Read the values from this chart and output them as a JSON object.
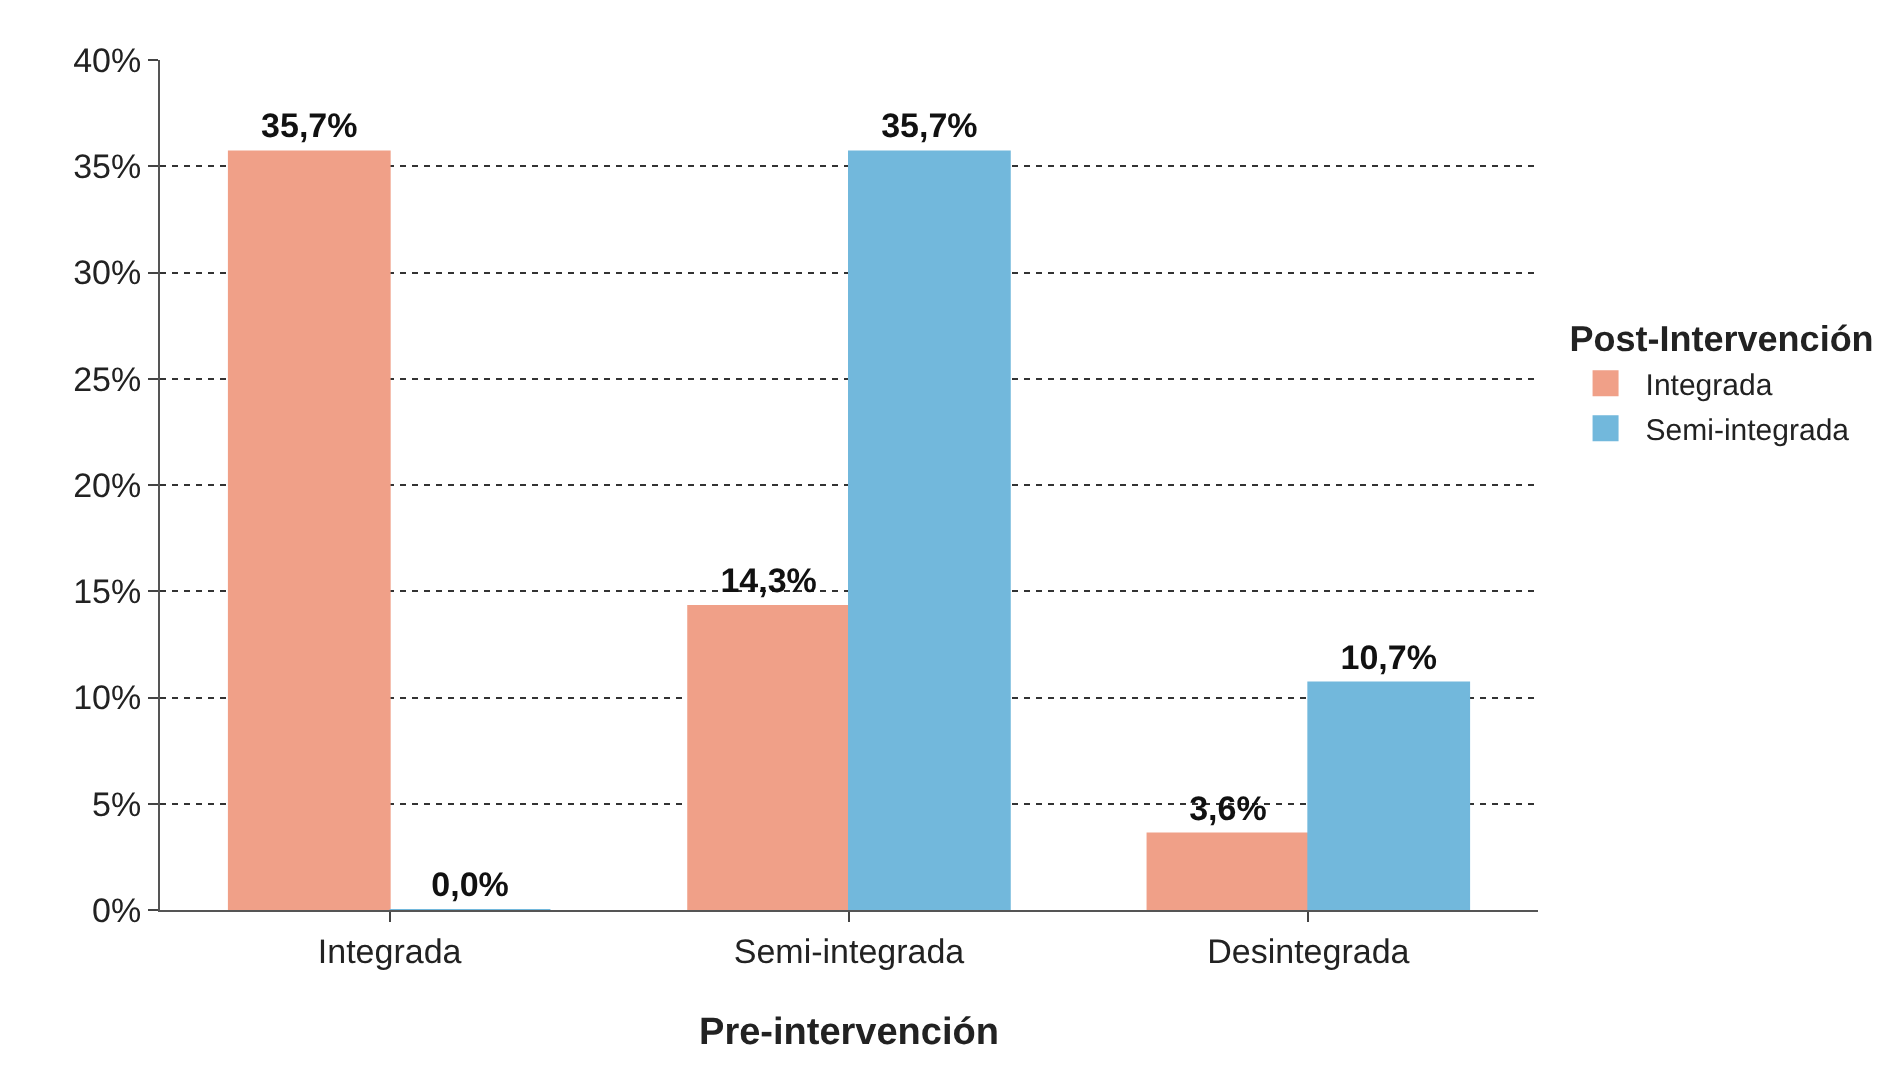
{
  "chart_data": {
    "type": "bar",
    "xlabel": "Pre-intervención",
    "legend_title": "Post-Intervención",
    "categories": [
      "Integrada",
      "Semi-integrada",
      "Desintegrada"
    ],
    "series": [
      {
        "name": "Integrada",
        "color": "#f0a088",
        "values": [
          35.7,
          14.3,
          3.6
        ],
        "value_labels": [
          "35,7%",
          "14,3%",
          "3,6%"
        ]
      },
      {
        "name": "Semi-integrada",
        "color": "#72b8dc",
        "values": [
          0.0,
          35.7,
          10.7
        ],
        "value_labels": [
          "0,0%",
          "35,7%",
          "10,7%"
        ]
      }
    ],
    "ylim": [
      0,
      40
    ],
    "yticks": [
      {
        "value": 0,
        "label": "0%"
      },
      {
        "value": 5,
        "label": "5%"
      },
      {
        "value": 10,
        "label": "10%"
      },
      {
        "value": 15,
        "label": "15%"
      },
      {
        "value": 20,
        "label": "20%"
      },
      {
        "value": 25,
        "label": "25%"
      },
      {
        "value": 30,
        "label": "30%"
      },
      {
        "value": 35,
        "label": "35%"
      },
      {
        "value": 40,
        "label": "40%"
      }
    ],
    "grid": "y",
    "legend": "right"
  }
}
